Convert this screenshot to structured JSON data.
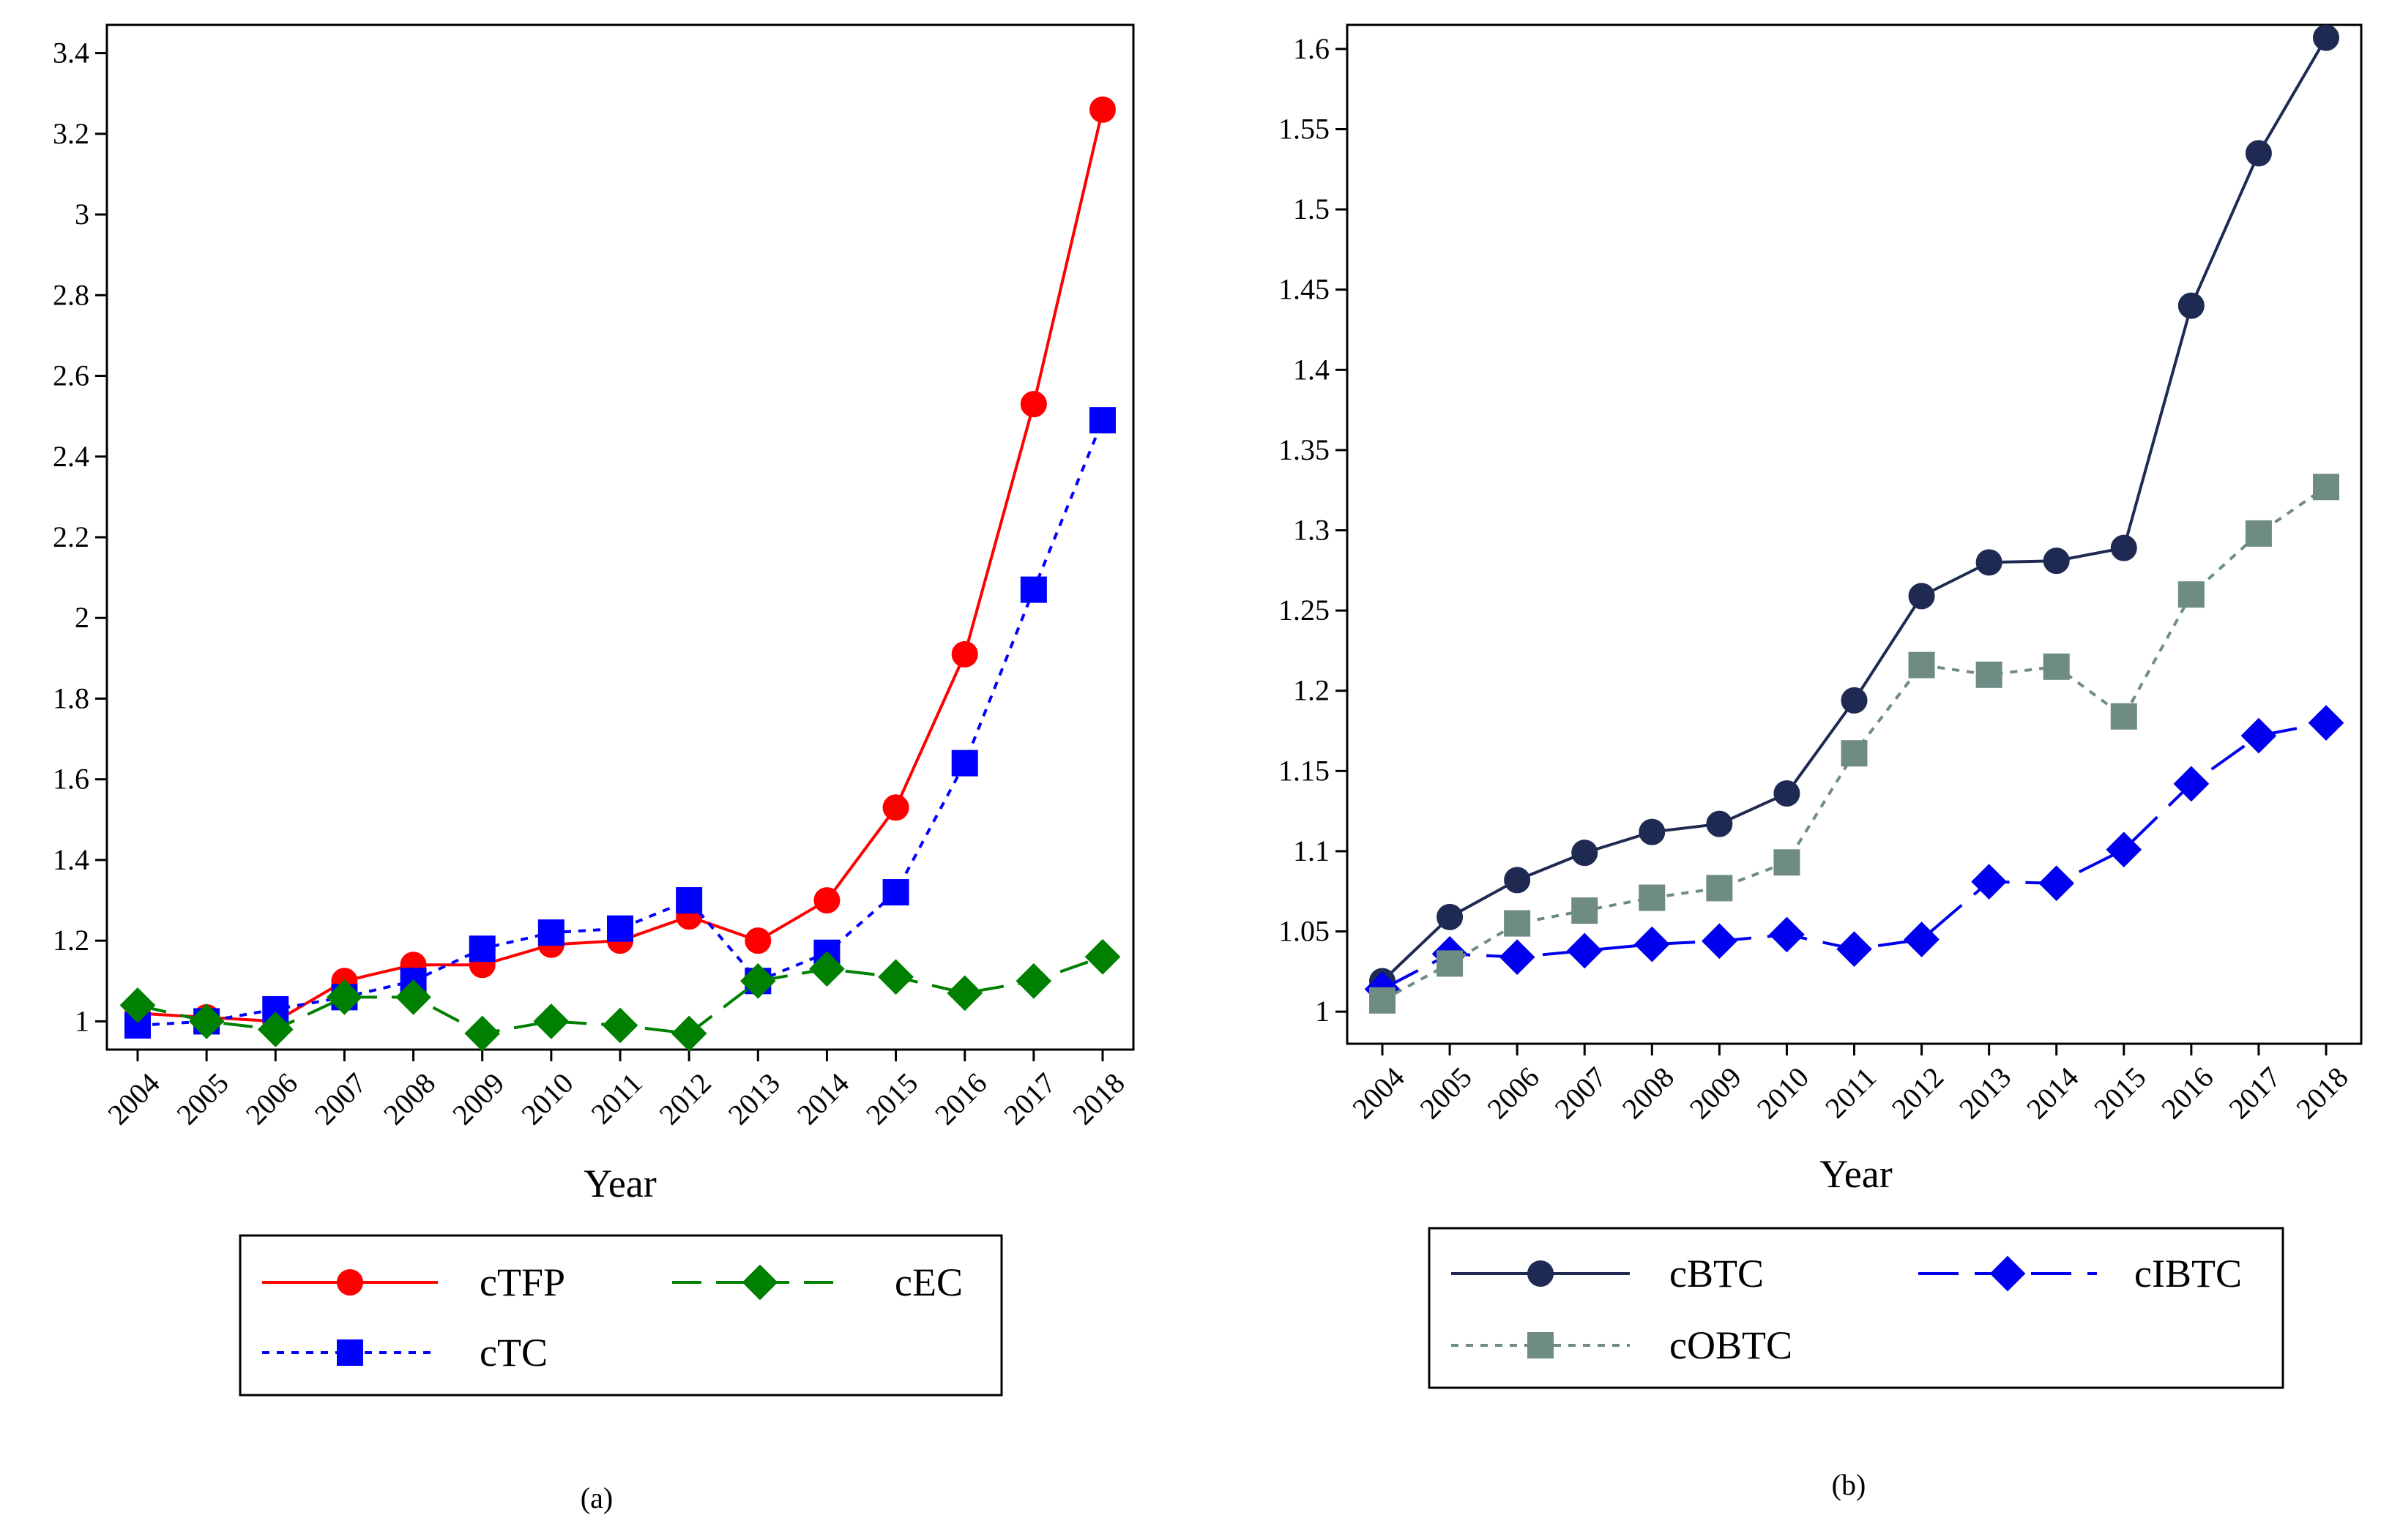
{
  "chart_data": [
    {
      "type": "line",
      "panel": "a",
      "caption": "(a)",
      "xlabel": "Year",
      "ylabel": "",
      "x": [
        "2004",
        "2005",
        "2006",
        "2007",
        "2008",
        "2009",
        "2010",
        "2011",
        "2012",
        "2013",
        "2014",
        "2015",
        "2016",
        "2017",
        "2018"
      ],
      "ylim": [
        0.93,
        3.47
      ],
      "yticks": [
        1,
        1.2,
        1.4,
        1.6,
        1.8,
        2,
        2.2,
        2.4,
        2.6,
        2.8,
        3,
        3.2,
        3.4
      ],
      "ytick_labels": [
        "1",
        "1.2",
        "1.4",
        "1.6",
        "1.8",
        "2",
        "2.2",
        "2.4",
        "2.6",
        "2.8",
        "3",
        "3.2",
        "3.4"
      ],
      "series": [
        {
          "name": "cTFP",
          "color": "#ff0000",
          "marker": "circle",
          "dash": "solid",
          "values": [
            1.02,
            1.01,
            1.0,
            1.1,
            1.14,
            1.14,
            1.19,
            1.2,
            1.26,
            1.2,
            1.3,
            1.53,
            1.91,
            2.53,
            3.26
          ]
        },
        {
          "name": "cTC",
          "color": "#0000ff",
          "marker": "square",
          "dash": "dot",
          "values": [
            0.99,
            1.0,
            1.03,
            1.06,
            1.1,
            1.18,
            1.22,
            1.23,
            1.3,
            1.1,
            1.17,
            1.32,
            1.64,
            2.07,
            2.49
          ]
        },
        {
          "name": "cEC",
          "color": "#008000",
          "marker": "diamond",
          "dash": "dash",
          "values": [
            1.04,
            1.0,
            0.98,
            1.06,
            1.06,
            0.97,
            1.0,
            0.99,
            0.97,
            1.1,
            1.13,
            1.11,
            1.07,
            1.1,
            1.16
          ]
        }
      ],
      "legend_order": [
        "cTFP",
        "cEC",
        "cTC"
      ]
    },
    {
      "type": "line",
      "panel": "b",
      "caption": "(b)",
      "xlabel": "Year",
      "ylabel": "",
      "x": [
        "2004",
        "2005",
        "2006",
        "2007",
        "2008",
        "2009",
        "2010",
        "2011",
        "2012",
        "2013",
        "2014",
        "2015",
        "2016",
        "2017",
        "2018"
      ],
      "ylim": [
        0.98,
        1.615
      ],
      "yticks": [
        1,
        1.05,
        1.1,
        1.15,
        1.2,
        1.25,
        1.3,
        1.35,
        1.4,
        1.45,
        1.5,
        1.55,
        1.6
      ],
      "ytick_labels": [
        "1",
        "1.05",
        "1.1",
        "1.15",
        "1.2",
        "1.25",
        "1.3",
        "1.35",
        "1.4",
        "1.45",
        "1.5",
        "1.55",
        "1.6"
      ],
      "series": [
        {
          "name": "cBTC",
          "color": "#1f2a52",
          "marker": "circle",
          "dash": "solid",
          "values": [
            1.019,
            1.059,
            1.082,
            1.099,
            1.112,
            1.117,
            1.136,
            1.194,
            1.259,
            1.28,
            1.281,
            1.289,
            1.44,
            1.535,
            1.607
          ]
        },
        {
          "name": "cIBTC",
          "color": "#0000ee",
          "marker": "diamond",
          "dash": "longdash",
          "values": [
            1.014,
            1.036,
            1.034,
            1.038,
            1.042,
            1.044,
            1.048,
            1.039,
            1.045,
            1.081,
            1.08,
            1.101,
            1.142,
            1.172,
            1.18
          ]
        },
        {
          "name": "cOBTC",
          "color": "#6e8b84",
          "marker": "square",
          "dash": "dot",
          "values": [
            1.007,
            1.03,
            1.055,
            1.063,
            1.071,
            1.077,
            1.093,
            1.161,
            1.216,
            1.21,
            1.215,
            1.184,
            1.26,
            1.298,
            1.327
          ]
        }
      ],
      "legend_order": [
        "cBTC",
        "cIBTC",
        "cOBTC"
      ]
    }
  ]
}
